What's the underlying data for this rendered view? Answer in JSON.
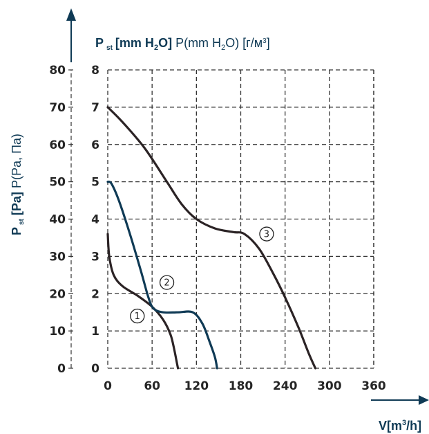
{
  "chart_data": {
    "type": "line",
    "title": "",
    "y_secondary_label": {
      "main": "P",
      "sub": "st",
      "bold": "[mm H",
      "bold_sub": "2",
      "bold_end": "O]",
      "regular": " P(mm H",
      "regular_sub": "2",
      "regular_end": "O) [г/м",
      "regular_sup": "3",
      "regular_close": "]"
    },
    "y_primary_label": {
      "main": "P",
      "sub": "st",
      "bold": " [Pa]",
      "regular": " P(Pa, Па)"
    },
    "x_label": {
      "main": "V[m",
      "sup": "3",
      "end": "/h]"
    },
    "x_ticks": [
      "0",
      "60",
      "120",
      "180",
      "240",
      "300",
      "360"
    ],
    "y_primary_ticks": [
      "0",
      "10",
      "20",
      "30",
      "40",
      "50",
      "60",
      "70",
      "80"
    ],
    "y_secondary_ticks": [
      "0",
      "1",
      "2",
      "3",
      "4",
      "5",
      "6",
      "7",
      "8"
    ],
    "xlim": [
      0,
      360
    ],
    "ylim": [
      0,
      8
    ],
    "grid": true,
    "series": [
      {
        "marker": "1",
        "color": "#2b2325",
        "x": [
          0,
          2,
          8,
          20,
          40,
          60,
          75,
          85,
          90,
          93,
          95
        ],
        "y": [
          3.6,
          3.0,
          2.5,
          2.2,
          1.95,
          1.65,
          1.3,
          0.9,
          0.5,
          0.2,
          0.0
        ]
      },
      {
        "marker": "2",
        "color": "#0f3a55",
        "x": [
          0,
          5,
          15,
          30,
          45,
          55,
          62,
          75,
          95,
          115,
          128,
          138,
          145,
          148
        ],
        "y": [
          5.0,
          4.95,
          4.5,
          3.6,
          2.6,
          1.9,
          1.6,
          1.5,
          1.5,
          1.5,
          1.2,
          0.7,
          0.3,
          0.0
        ]
      },
      {
        "marker": "3",
        "color": "#2b2325",
        "x": [
          0,
          20,
          50,
          80,
          100,
          120,
          145,
          170,
          185,
          205,
          225,
          240,
          258,
          272,
          281
        ],
        "y": [
          7.0,
          6.6,
          5.9,
          5.0,
          4.4,
          4.0,
          3.75,
          3.65,
          3.6,
          3.2,
          2.5,
          1.9,
          1.1,
          0.4,
          0.0
        ]
      }
    ],
    "markers": [
      {
        "label": "1",
        "at": [
          40,
          1.4
        ]
      },
      {
        "label": "2",
        "at": [
          80,
          2.3
        ]
      },
      {
        "label": "3",
        "at": [
          215,
          3.6
        ]
      }
    ],
    "colors": {
      "accent": "#0f3a55",
      "ink": "#2b2325",
      "grid": "#333333"
    }
  }
}
